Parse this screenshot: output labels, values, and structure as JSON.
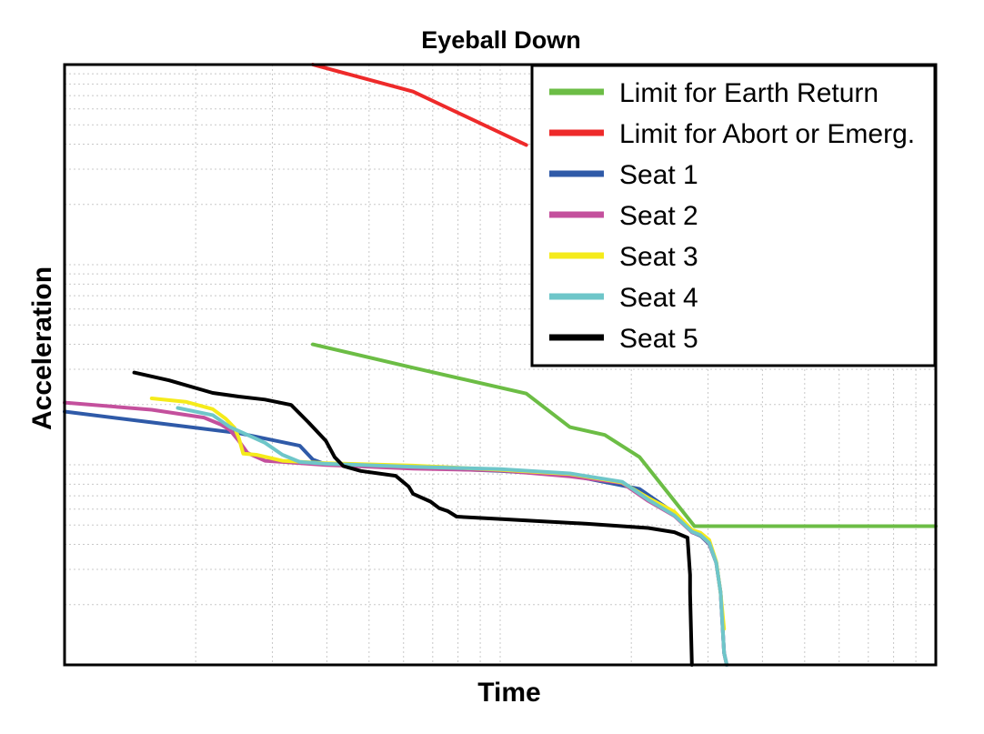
{
  "chart_data": {
    "type": "line",
    "title": "Eyeball Down",
    "xlabel": "Time",
    "ylabel": "Acceleration",
    "xlim": [
      0,
      100
    ],
    "ylim": [
      0,
      100
    ],
    "log_scale": true,
    "grid": true,
    "legend_position": "top-right",
    "series": [
      {
        "name": "Limit for Earth Return",
        "color": "#6cbd45",
        "points": [
          [
            28.5,
            53.4
          ],
          [
            40,
            49.5
          ],
          [
            53,
            45.2
          ],
          [
            58,
            39.6
          ],
          [
            62,
            38.3
          ],
          [
            66,
            34.6
          ],
          [
            72.3,
            23.1
          ],
          [
            100,
            23.1
          ]
        ]
      },
      {
        "name": "Limit for Abort or Emerg.",
        "color": "#ee2a2a",
        "points": [
          [
            28.5,
            100
          ],
          [
            40,
            95.5
          ],
          [
            53,
            86.6
          ]
        ]
      },
      {
        "name": "Seat 1",
        "color": "#2f5aa8",
        "points": [
          [
            0,
            42.2
          ],
          [
            10,
            40.4
          ],
          [
            20,
            38.6
          ],
          [
            27,
            36.5
          ],
          [
            28.5,
            34.2
          ],
          [
            30,
            33.4
          ],
          [
            40,
            32.9
          ],
          [
            50,
            32.3
          ],
          [
            58,
            31.6
          ],
          [
            66,
            29.3
          ],
          [
            70,
            25.3
          ],
          [
            72,
            22.1
          ],
          [
            73,
            21.5
          ],
          [
            74,
            20.1
          ],
          [
            74.8,
            17
          ],
          [
            75.3,
            12
          ],
          [
            75.7,
            2
          ],
          [
            76,
            0
          ]
        ]
      },
      {
        "name": "Seat 2",
        "color": "#c4509d",
        "points": [
          [
            0,
            43.7
          ],
          [
            10,
            42.5
          ],
          [
            16,
            41.2
          ],
          [
            18,
            40
          ],
          [
            19,
            39.1
          ],
          [
            20,
            37.3
          ],
          [
            21,
            35.3
          ],
          [
            23,
            34
          ],
          [
            25,
            33.8
          ],
          [
            30,
            33.3
          ],
          [
            40,
            32.7
          ],
          [
            50,
            32.4
          ],
          [
            58,
            31.4
          ],
          [
            64,
            30.3
          ],
          [
            67,
            27.3
          ],
          [
            70,
            24.8
          ],
          [
            72,
            22.1
          ],
          [
            73,
            21.6
          ],
          [
            74,
            20.2
          ],
          [
            74.8,
            17
          ],
          [
            75.3,
            12
          ],
          [
            75.7,
            2
          ],
          [
            76,
            0
          ]
        ]
      },
      {
        "name": "Seat 3",
        "color": "#f5eb1a",
        "points": [
          [
            10,
            44.4
          ],
          [
            14,
            43.8
          ],
          [
            17,
            42.6
          ],
          [
            18.5,
            41
          ],
          [
            19.5,
            39.5
          ],
          [
            20,
            37.8
          ],
          [
            20.5,
            35.2
          ],
          [
            22,
            35
          ],
          [
            25,
            34
          ],
          [
            30,
            33.6
          ],
          [
            40,
            33.2
          ],
          [
            50,
            32.5
          ],
          [
            58,
            31.8
          ],
          [
            64,
            30.4
          ],
          [
            67,
            27.8
          ],
          [
            70,
            25.5
          ],
          [
            72,
            22.5
          ],
          [
            73,
            22
          ],
          [
            74,
            20.8
          ],
          [
            74.8,
            17.2
          ],
          [
            75.3,
            12
          ],
          [
            75.7,
            6
          ]
        ]
      },
      {
        "name": "Seat 4",
        "color": "#6ec6c9",
        "points": [
          [
            13,
            42.8
          ],
          [
            17,
            41.6
          ],
          [
            19,
            39.6
          ],
          [
            21,
            38.3
          ],
          [
            23,
            37
          ],
          [
            25,
            35
          ],
          [
            27,
            33.8
          ],
          [
            30,
            33.5
          ],
          [
            40,
            33
          ],
          [
            50,
            32.6
          ],
          [
            58,
            31.9
          ],
          [
            64,
            30.5
          ],
          [
            67,
            27.5
          ],
          [
            70,
            24.9
          ],
          [
            72,
            22.2
          ],
          [
            73,
            21.6
          ],
          [
            74,
            20.3
          ],
          [
            74.8,
            17
          ],
          [
            75.3,
            12
          ],
          [
            75.7,
            2
          ],
          [
            76,
            0
          ]
        ]
      },
      {
        "name": "Seat 5",
        "color": "#000000",
        "points": [
          [
            8,
            48.7
          ],
          [
            12,
            47.4
          ],
          [
            17,
            45.3
          ],
          [
            20,
            44.7
          ],
          [
            23,
            44.2
          ],
          [
            26,
            43.3
          ],
          [
            28,
            40.4
          ],
          [
            30,
            37.3
          ],
          [
            31,
            34.6
          ],
          [
            32,
            33.1
          ],
          [
            34,
            32.3
          ],
          [
            38,
            31.5
          ],
          [
            39.5,
            29.7
          ],
          [
            40,
            28.5
          ],
          [
            42,
            27.2
          ],
          [
            43,
            26.1
          ],
          [
            44,
            25.6
          ],
          [
            45,
            24.7
          ],
          [
            50,
            24.3
          ],
          [
            60,
            23.5
          ],
          [
            67,
            22.8
          ],
          [
            70,
            22.1
          ],
          [
            71.5,
            21.2
          ],
          [
            71.8,
            15
          ],
          [
            71.8,
            12
          ],
          [
            72,
            0
          ]
        ]
      }
    ]
  }
}
